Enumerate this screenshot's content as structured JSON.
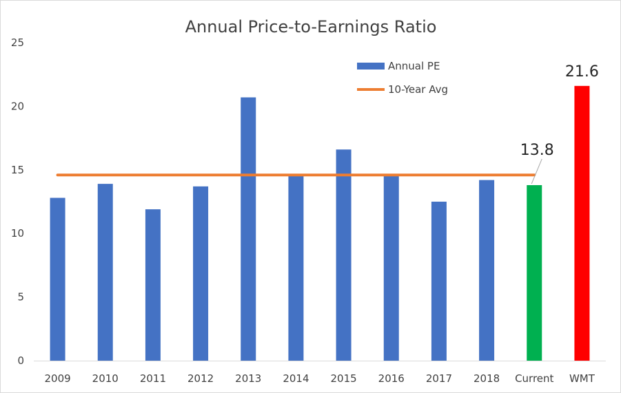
{
  "chart_data": {
    "type": "bar",
    "title": "Annual Price-to-Earnings Ratio",
    "categories": [
      "2009",
      "2010",
      "2011",
      "2012",
      "2013",
      "2014",
      "2015",
      "2016",
      "2017",
      "2018",
      "Current",
      "WMT"
    ],
    "series": [
      {
        "name": "Annual PE",
        "type": "bar",
        "color": "#4472c4",
        "values": [
          12.8,
          13.9,
          11.9,
          13.7,
          20.7,
          14.5,
          16.6,
          14.5,
          12.5,
          14.2,
          13.8,
          21.6
        ],
        "point_colors": [
          "#4472c4",
          "#4472c4",
          "#4472c4",
          "#4472c4",
          "#4472c4",
          "#4472c4",
          "#4472c4",
          "#4472c4",
          "#4472c4",
          "#4472c4",
          "#00b050",
          "#ff0000"
        ]
      },
      {
        "name": "10-Year Avg",
        "type": "line",
        "color": "#ed7d31",
        "values": [
          14.6,
          14.6,
          14.6,
          14.6,
          14.6,
          14.6,
          14.6,
          14.6,
          14.6,
          14.6,
          14.6,
          null
        ]
      }
    ],
    "data_labels": [
      {
        "category": "Current",
        "text": "13.8"
      },
      {
        "category": "WMT",
        "text": "21.6"
      }
    ],
    "yticks": [
      "0",
      "5",
      "10",
      "15",
      "20",
      "25"
    ],
    "ylim": [
      0,
      25
    ],
    "xlabel": "",
    "ylabel": "",
    "grid": false,
    "legend_position": "top-right"
  }
}
